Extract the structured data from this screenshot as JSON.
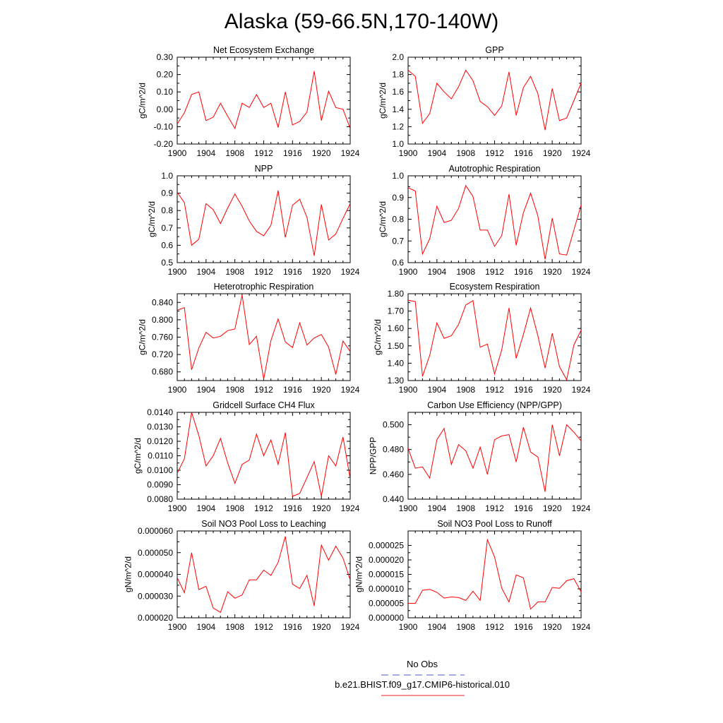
{
  "figure": {
    "title": "Alaska (59-66.5N,170-140W)",
    "legend": [
      {
        "label": "No Obs",
        "color": "#4a5acd",
        "style": "dashed"
      },
      {
        "label": "b.e21.BHIST.f09_g17.CMIP6-historical.010",
        "color": "#e8202a",
        "style": "solid"
      }
    ],
    "line_color": "#ff0000"
  },
  "chart_data": [
    {
      "type": "line",
      "title": "Net Ecosystem Exchange",
      "ylabel": "gC/m^2/d",
      "xlim": [
        1900,
        1924
      ],
      "ylim": [
        -0.2,
        0.3
      ],
      "xticks": [
        "1900",
        "1904",
        "1908",
        "1912",
        "1916",
        "1920",
        "1924"
      ],
      "yticks": [
        "-0.20",
        "-0.10",
        "0.00",
        "0.10",
        "0.20",
        "0.30"
      ],
      "x": [
        1900,
        1901,
        1902,
        1903,
        1904,
        1905,
        1906,
        1907,
        1908,
        1909,
        1910,
        1911,
        1912,
        1913,
        1914,
        1915,
        1916,
        1917,
        1918,
        1919,
        1920,
        1921,
        1922,
        1923,
        1924
      ],
      "values": [
        -0.085,
        -0.02,
        0.085,
        0.1,
        -0.065,
        -0.045,
        0.035,
        -0.04,
        -0.11,
        0.035,
        0.01,
        0.085,
        0.01,
        0.035,
        -0.105,
        0.1,
        -0.09,
        -0.07,
        -0.015,
        0.22,
        -0.065,
        0.105,
        0.01,
        0.0,
        -0.11
      ]
    },
    {
      "type": "line",
      "title": "GPP",
      "ylabel": "gC/m^2/d",
      "xlim": [
        1900,
        1924
      ],
      "ylim": [
        1.0,
        2.0
      ],
      "xticks": [
        "1900",
        "1904",
        "1908",
        "1912",
        "1916",
        "1920",
        "1924"
      ],
      "yticks": [
        "1.0",
        "1.2",
        "1.4",
        "1.6",
        "1.8",
        "2.0"
      ],
      "x": [
        1900,
        1901,
        1902,
        1903,
        1904,
        1905,
        1906,
        1907,
        1908,
        1909,
        1910,
        1911,
        1912,
        1913,
        1914,
        1915,
        1916,
        1917,
        1918,
        1919,
        1920,
        1921,
        1922,
        1923,
        1924
      ],
      "values": [
        1.85,
        1.78,
        1.24,
        1.35,
        1.7,
        1.6,
        1.52,
        1.66,
        1.85,
        1.73,
        1.49,
        1.43,
        1.33,
        1.44,
        1.83,
        1.33,
        1.65,
        1.78,
        1.58,
        1.16,
        1.64,
        1.27,
        1.3,
        1.5,
        1.7
      ]
    },
    {
      "type": "line",
      "title": "NPP",
      "ylabel": "gC/m^2/d",
      "xlim": [
        1900,
        1924
      ],
      "ylim": [
        0.5,
        1.0
      ],
      "xticks": [
        "1900",
        "1904",
        "1908",
        "1912",
        "1916",
        "1920",
        "1924"
      ],
      "yticks": [
        "0.5",
        "0.6",
        "0.7",
        "0.8",
        "0.9",
        "1.0"
      ],
      "x": [
        1900,
        1901,
        1902,
        1903,
        1904,
        1905,
        1906,
        1907,
        1908,
        1909,
        1910,
        1911,
        1912,
        1913,
        1914,
        1915,
        1916,
        1917,
        1918,
        1919,
        1920,
        1921,
        1922,
        1923,
        1924
      ],
      "values": [
        0.905,
        0.845,
        0.6,
        0.635,
        0.84,
        0.805,
        0.725,
        0.815,
        0.895,
        0.825,
        0.74,
        0.68,
        0.655,
        0.715,
        0.915,
        0.645,
        0.83,
        0.865,
        0.76,
        0.54,
        0.835,
        0.63,
        0.665,
        0.755,
        0.84
      ]
    },
    {
      "type": "line",
      "title": "Autotrophic Respiration",
      "ylabel": "gC/m^2/d",
      "xlim": [
        1900,
        1924
      ],
      "ylim": [
        0.6,
        1.0
      ],
      "xticks": [
        "1900",
        "1904",
        "1908",
        "1912",
        "1916",
        "1920",
        "1924"
      ],
      "yticks": [
        "0.6",
        "0.7",
        "0.8",
        "0.9",
        "1.0"
      ],
      "x": [
        1900,
        1901,
        1902,
        1903,
        1904,
        1905,
        1906,
        1907,
        1908,
        1909,
        1910,
        1911,
        1912,
        1913,
        1914,
        1915,
        1916,
        1917,
        1918,
        1919,
        1920,
        1921,
        1922,
        1923,
        1924
      ],
      "values": [
        0.945,
        0.93,
        0.64,
        0.71,
        0.86,
        0.785,
        0.795,
        0.85,
        0.955,
        0.905,
        0.75,
        0.75,
        0.675,
        0.725,
        0.915,
        0.68,
        0.83,
        0.92,
        0.815,
        0.615,
        0.805,
        0.64,
        0.635,
        0.75,
        0.865
      ]
    },
    {
      "type": "line",
      "title": "Heterotrophic Respiration",
      "ylabel": "gC/m^2/d",
      "xlim": [
        1900,
        1924
      ],
      "ylim": [
        0.66,
        0.86
      ],
      "xticks": [
        "1900",
        "1904",
        "1908",
        "1912",
        "1916",
        "1920",
        "1924"
      ],
      "yticks": [
        "0.680",
        "0.720",
        "0.760",
        "0.800",
        "0.840"
      ],
      "x": [
        1900,
        1901,
        1902,
        1903,
        1904,
        1905,
        1906,
        1907,
        1908,
        1909,
        1910,
        1911,
        1912,
        1913,
        1914,
        1915,
        1916,
        1917,
        1918,
        1919,
        1920,
        1921,
        1922,
        1923,
        1924
      ],
      "values": [
        0.822,
        0.828,
        0.685,
        0.735,
        0.771,
        0.758,
        0.762,
        0.775,
        0.779,
        0.857,
        0.743,
        0.762,
        0.663,
        0.752,
        0.802,
        0.749,
        0.736,
        0.793,
        0.742,
        0.758,
        0.766,
        0.737,
        0.674,
        0.751,
        0.727
      ]
    },
    {
      "type": "line",
      "title": "Ecosystem Respiration",
      "ylabel": "gC/m^2/d",
      "xlim": [
        1900,
        1924
      ],
      "ylim": [
        1.3,
        1.8
      ],
      "xticks": [
        "1900",
        "1904",
        "1908",
        "1912",
        "1916",
        "1920",
        "1924"
      ],
      "yticks": [
        "1.30",
        "1.40",
        "1.50",
        "1.60",
        "1.70",
        "1.80"
      ],
      "x": [
        1900,
        1901,
        1902,
        1903,
        1904,
        1905,
        1906,
        1907,
        1908,
        1909,
        1910,
        1911,
        1912,
        1913,
        1914,
        1915,
        1916,
        1917,
        1918,
        1919,
        1920,
        1921,
        1922,
        1923,
        1924
      ],
      "values": [
        1.762,
        1.755,
        1.325,
        1.445,
        1.632,
        1.543,
        1.558,
        1.623,
        1.735,
        1.76,
        1.492,
        1.51,
        1.338,
        1.478,
        1.718,
        1.428,
        1.565,
        1.718,
        1.558,
        1.372,
        1.572,
        1.38,
        1.305,
        1.505,
        1.59
      ]
    },
    {
      "type": "line",
      "title": "Gridcell Surface CH4 Flux",
      "ylabel": "gC/m^2/d",
      "xlim": [
        1900,
        1924
      ],
      "ylim": [
        0.008,
        0.014
      ],
      "xticks": [
        "1900",
        "1904",
        "1908",
        "1912",
        "1916",
        "1920",
        "1924"
      ],
      "yticks": [
        "0.0080",
        "0.0090",
        "0.0100",
        "0.0110",
        "0.0120",
        "0.0130",
        "0.0140"
      ],
      "x": [
        1900,
        1901,
        1902,
        1903,
        1904,
        1905,
        1906,
        1907,
        1908,
        1909,
        1910,
        1911,
        1912,
        1913,
        1914,
        1915,
        1916,
        1917,
        1918,
        1919,
        1920,
        1921,
        1922,
        1923,
        1924
      ],
      "values": [
        0.0098,
        0.0108,
        0.014,
        0.0124,
        0.0103,
        0.011,
        0.0122,
        0.0105,
        0.0091,
        0.0104,
        0.0107,
        0.0125,
        0.011,
        0.0121,
        0.0104,
        0.0126,
        0.0082,
        0.0084,
        0.0095,
        0.0106,
        0.0082,
        0.011,
        0.0103,
        0.0123,
        0.0094
      ]
    },
    {
      "type": "line",
      "title": "Carbon Use Efficiency (NPP/GPP)",
      "ylabel": "NPP/GPP",
      "xlim": [
        1900,
        1924
      ],
      "ylim": [
        0.44,
        0.51
      ],
      "xticks": [
        "1900",
        "1904",
        "1908",
        "1912",
        "1916",
        "1920",
        "1924"
      ],
      "yticks": [
        "0.440",
        "0.460",
        "0.480",
        "0.500"
      ],
      "x": [
        1900,
        1901,
        1902,
        1903,
        1904,
        1905,
        1906,
        1907,
        1908,
        1909,
        1910,
        1911,
        1912,
        1913,
        1914,
        1915,
        1916,
        1917,
        1918,
        1919,
        1920,
        1921,
        1922,
        1923,
        1924
      ],
      "values": [
        0.481,
        0.465,
        0.466,
        0.457,
        0.488,
        0.497,
        0.468,
        0.484,
        0.479,
        0.465,
        0.482,
        0.46,
        0.488,
        0.491,
        0.492,
        0.47,
        0.498,
        0.478,
        0.474,
        0.446,
        0.5,
        0.475,
        0.5,
        0.494,
        0.487
      ]
    },
    {
      "type": "line",
      "title": "Soil NO3 Pool Loss to Leaching",
      "ylabel": "gN/m^2/d",
      "xlim": [
        1900,
        1924
      ],
      "ylim": [
        2e-05,
        6e-05
      ],
      "xticks": [
        "1900",
        "1904",
        "1908",
        "1912",
        "1916",
        "1920",
        "1924"
      ],
      "yticks": [
        "0.000020",
        "0.000030",
        "0.000040",
        "0.000050",
        "0.000060"
      ],
      "x": [
        1900,
        1901,
        1902,
        1903,
        1904,
        1905,
        1906,
        1907,
        1908,
        1909,
        1910,
        1911,
        1912,
        1913,
        1914,
        1915,
        1916,
        1917,
        1918,
        1919,
        1920,
        1921,
        1922,
        1923,
        1924
      ],
      "values": [
        3.85e-05,
        3.15e-05,
        5e-05,
        3.3e-05,
        3.45e-05,
        2.45e-05,
        2.25e-05,
        3.2e-05,
        2.9e-05,
        3.05e-05,
        3.75e-05,
        3.75e-05,
        4.2e-05,
        3.95e-05,
        4.55e-05,
        5.75e-05,
        3.55e-05,
        3.35e-05,
        3.95e-05,
        2.55e-05,
        5.35e-05,
        4.65e-05,
        5.3e-05,
        4.75e-05,
        3.75e-05
      ]
    },
    {
      "type": "line",
      "title": "Soil NO3 Pool Loss to Runoff",
      "ylabel": "gN/m^2/d",
      "xlim": [
        1900,
        1924
      ],
      "ylim": [
        0.0,
        3e-05
      ],
      "xticks": [
        "1900",
        "1904",
        "1908",
        "1912",
        "1916",
        "1920",
        "1924"
      ],
      "yticks": [
        "0.000000",
        "0.000005",
        "0.000010",
        "0.000015",
        "0.000020",
        "0.000025"
      ],
      "x": [
        1900,
        1901,
        1902,
        1903,
        1904,
        1905,
        1906,
        1907,
        1908,
        1909,
        1910,
        1911,
        1912,
        1913,
        1914,
        1915,
        1916,
        1917,
        1918,
        1919,
        1920,
        1921,
        1922,
        1923,
        1924
      ],
      "values": [
        5e-06,
        5e-06,
        9.5e-06,
        9.8e-06,
        8.8e-06,
        6.8e-06,
        7.2e-06,
        7e-06,
        6e-06,
        9.2e-06,
        6e-06,
        2.7e-05,
        2.1e-05,
        1.02e-05,
        5.5e-06,
        1.48e-05,
        1.38e-05,
        3e-06,
        5.5e-06,
        5.5e-06,
        1.05e-05,
        1.02e-05,
        1.28e-05,
        1.35e-05,
        9e-06
      ]
    }
  ]
}
